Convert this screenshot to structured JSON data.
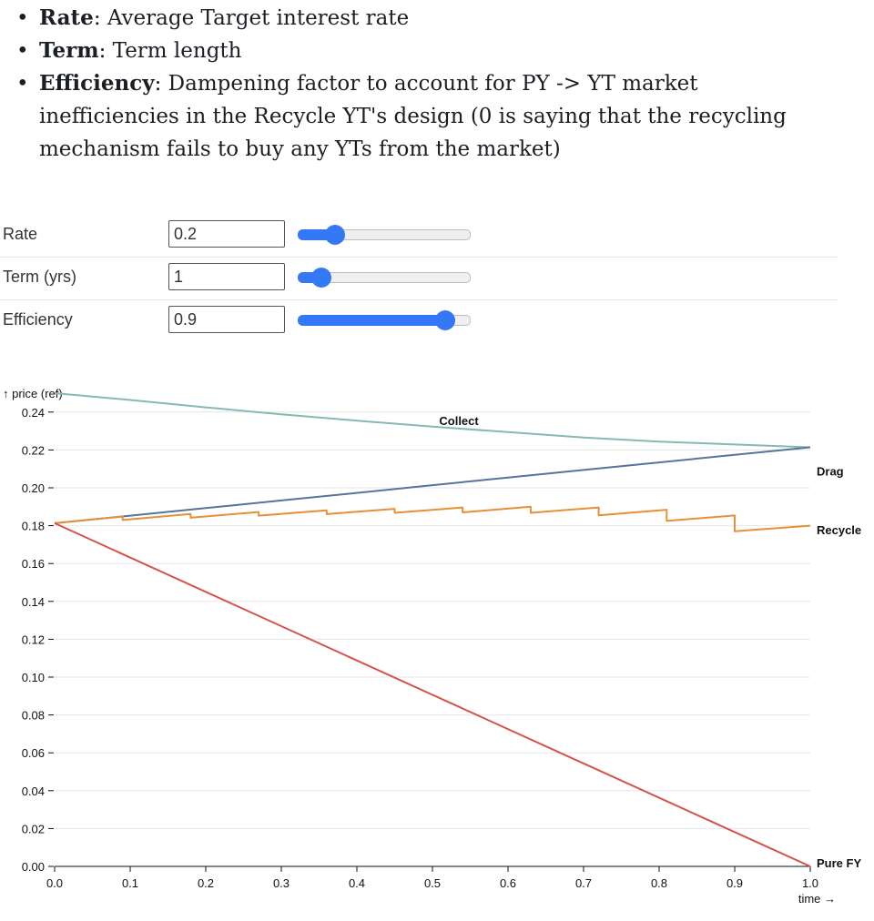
{
  "notes": [
    {
      "term": "Rate",
      "text": ": Average Target interest rate"
    },
    {
      "term": "Term",
      "text": ": Term length"
    },
    {
      "term": "Efficiency",
      "text": ": Dampening factor to account for PY -> YT market inefficiencies in the Recycle YT's design (0 is saying that the recycling mechanism fails to buy any YTs from the market)"
    }
  ],
  "controls": [
    {
      "label": "Rate",
      "value": "0.2",
      "fraction": 0.22
    },
    {
      "label": "Term (yrs)",
      "value": "1",
      "fraction": 0.14
    },
    {
      "label": "Efficiency",
      "value": "0.9",
      "fraction": 0.86
    }
  ],
  "colors": {
    "slider_accent": "#3478f6",
    "collect": "#87b8b5",
    "drag": "#56759b",
    "recycle": "#e69138",
    "pure_fy": "#d6534d"
  },
  "chart_data": {
    "type": "line",
    "ylabel": "↑ price (ref)",
    "xlabel": "time →",
    "xlim": [
      0,
      1
    ],
    "ylim": [
      0,
      0.25
    ],
    "x_ticks": [
      "0.0",
      "0.1",
      "0.2",
      "0.3",
      "0.4",
      "0.5",
      "0.6",
      "0.7",
      "0.8",
      "0.9",
      "1.0"
    ],
    "y_ticks": [
      "0.00",
      "0.02",
      "0.04",
      "0.06",
      "0.08",
      "0.10",
      "0.12",
      "0.14",
      "0.16",
      "0.18",
      "0.20",
      "0.22",
      "0.24"
    ],
    "grid": true,
    "series": [
      {
        "name": "Collect",
        "color": "#87b8b5",
        "x": [
          0,
          0.1,
          0.2,
          0.3,
          0.4,
          0.5,
          0.6,
          0.7,
          0.8,
          0.9,
          1.0
        ],
        "y": [
          0.25,
          0.2464,
          0.2425,
          0.2388,
          0.2355,
          0.2323,
          0.2294,
          0.2266,
          0.2244,
          0.2229,
          0.2214
        ]
      },
      {
        "name": "Drag",
        "color": "#56759b",
        "x": [
          0,
          0.1,
          0.2,
          0.3,
          0.4,
          0.5,
          0.6,
          0.7,
          0.8,
          0.9,
          1.0
        ],
        "y": [
          0.1813,
          0.1853,
          0.1893,
          0.1933,
          0.1973,
          0.2014,
          0.2054,
          0.2094,
          0.2134,
          0.2174,
          0.2214
        ]
      },
      {
        "name": "Recycle",
        "color": "#e69138",
        "x": [
          0,
          0.09,
          0.09,
          0.18,
          0.18,
          0.27,
          0.27,
          0.36,
          0.36,
          0.45,
          0.45,
          0.54,
          0.54,
          0.63,
          0.63,
          0.72,
          0.72,
          0.81,
          0.81,
          0.9,
          0.9,
          1.0
        ],
        "y": [
          0.1813,
          0.1848,
          0.183,
          0.1862,
          0.1842,
          0.1872,
          0.1853,
          0.1881,
          0.1861,
          0.1889,
          0.1868,
          0.1896,
          0.187,
          0.19,
          0.1868,
          0.1896,
          0.1855,
          0.1884,
          0.1825,
          0.1854,
          0.177,
          0.18
        ]
      },
      {
        "name": "Pure FY",
        "color": "#d6534d",
        "x": [
          0,
          1.0
        ],
        "y": [
          0.1813,
          0
        ]
      }
    ],
    "series_labels": [
      {
        "name": "Collect",
        "at_x": 0.535,
        "at_y": 0.2355
      },
      {
        "name": "Drag",
        "at_x": 1.0,
        "at_y": 0.209
      },
      {
        "name": "Recycle",
        "at_x": 1.0,
        "at_y": 0.178
      },
      {
        "name": "Pure FY",
        "at_x": 1.0,
        "at_y": 0.002
      }
    ]
  }
}
